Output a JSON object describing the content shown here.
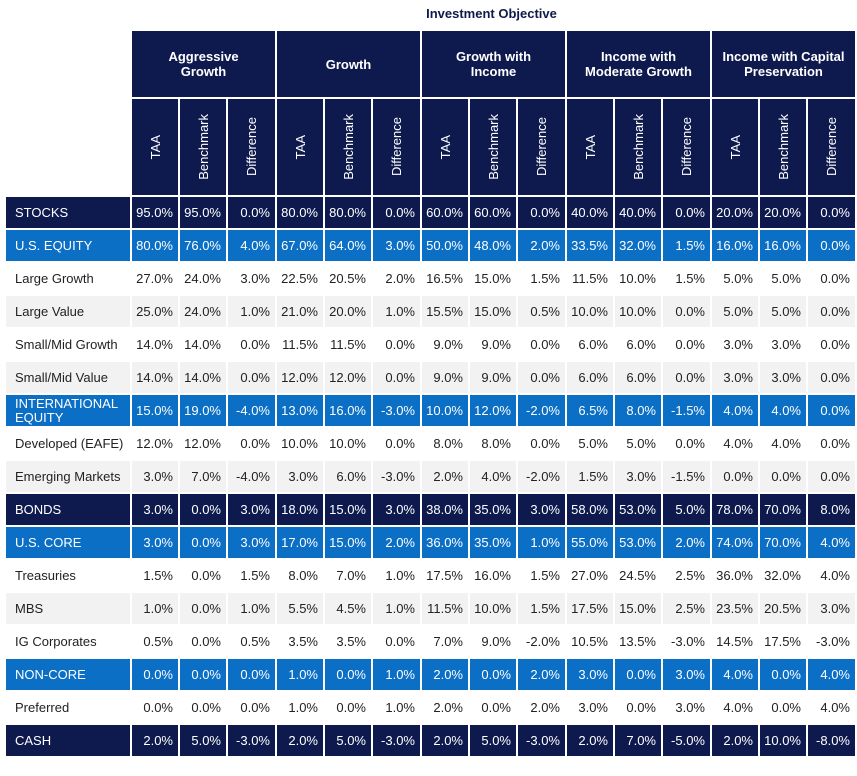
{
  "title": "Investment Objective",
  "objectives": [
    "Aggressive Growth",
    "Growth",
    "Growth with Income",
    "Income with Moderate Growth",
    "Income with Capital Preservation"
  ],
  "sub_headers": [
    "TAA",
    "Benchmark",
    "Difference"
  ],
  "colors": {
    "dark": "#0e1a4e",
    "mid": "#0b6fc6",
    "alt": "#f2f2f2"
  },
  "rows": [
    {
      "label": "STOCKS",
      "style": "dark",
      "values": [
        "95.0%",
        "95.0%",
        "0.0%",
        "80.0%",
        "80.0%",
        "0.0%",
        "60.0%",
        "60.0%",
        "0.0%",
        "40.0%",
        "40.0%",
        "0.0%",
        "20.0%",
        "20.0%",
        "0.0%"
      ]
    },
    {
      "label": "U.S. EQUITY",
      "style": "mid",
      "values": [
        "80.0%",
        "76.0%",
        "4.0%",
        "67.0%",
        "64.0%",
        "3.0%",
        "50.0%",
        "48.0%",
        "2.0%",
        "33.5%",
        "32.0%",
        "1.5%",
        "16.0%",
        "16.0%",
        "0.0%"
      ]
    },
    {
      "label": "Large Growth",
      "style": "odd",
      "values": [
        "27.0%",
        "24.0%",
        "3.0%",
        "22.5%",
        "20.5%",
        "2.0%",
        "16.5%",
        "15.0%",
        "1.5%",
        "11.5%",
        "10.0%",
        "1.5%",
        "5.0%",
        "5.0%",
        "0.0%"
      ]
    },
    {
      "label": "Large Value",
      "style": "even",
      "values": [
        "25.0%",
        "24.0%",
        "1.0%",
        "21.0%",
        "20.0%",
        "1.0%",
        "15.5%",
        "15.0%",
        "0.5%",
        "10.0%",
        "10.0%",
        "0.0%",
        "5.0%",
        "5.0%",
        "0.0%"
      ]
    },
    {
      "label": "Small/Mid Growth",
      "style": "odd",
      "values": [
        "14.0%",
        "14.0%",
        "0.0%",
        "11.5%",
        "11.5%",
        "0.0%",
        "9.0%",
        "9.0%",
        "0.0%",
        "6.0%",
        "6.0%",
        "0.0%",
        "3.0%",
        "3.0%",
        "0.0%"
      ]
    },
    {
      "label": "Small/Mid Value",
      "style": "even",
      "values": [
        "14.0%",
        "14.0%",
        "0.0%",
        "12.0%",
        "12.0%",
        "0.0%",
        "9.0%",
        "9.0%",
        "0.0%",
        "6.0%",
        "6.0%",
        "0.0%",
        "3.0%",
        "3.0%",
        "0.0%"
      ]
    },
    {
      "label": "INTERNATIONAL EQUITY",
      "style": "mid",
      "values": [
        "15.0%",
        "19.0%",
        "-4.0%",
        "13.0%",
        "16.0%",
        "-3.0%",
        "10.0%",
        "12.0%",
        "-2.0%",
        "6.5%",
        "8.0%",
        "-1.5%",
        "4.0%",
        "4.0%",
        "0.0%"
      ]
    },
    {
      "label": "Developed (EAFE)",
      "style": "odd",
      "values": [
        "12.0%",
        "12.0%",
        "0.0%",
        "10.0%",
        "10.0%",
        "0.0%",
        "8.0%",
        "8.0%",
        "0.0%",
        "5.0%",
        "5.0%",
        "0.0%",
        "4.0%",
        "4.0%",
        "0.0%"
      ]
    },
    {
      "label": "Emerging Markets",
      "style": "even",
      "values": [
        "3.0%",
        "7.0%",
        "-4.0%",
        "3.0%",
        "6.0%",
        "-3.0%",
        "2.0%",
        "4.0%",
        "-2.0%",
        "1.5%",
        "3.0%",
        "-1.5%",
        "0.0%",
        "0.0%",
        "0.0%"
      ]
    },
    {
      "label": "BONDS",
      "style": "dark",
      "values": [
        "3.0%",
        "0.0%",
        "3.0%",
        "18.0%",
        "15.0%",
        "3.0%",
        "38.0%",
        "35.0%",
        "3.0%",
        "58.0%",
        "53.0%",
        "5.0%",
        "78.0%",
        "70.0%",
        "8.0%"
      ]
    },
    {
      "label": "U.S. CORE",
      "style": "mid",
      "values": [
        "3.0%",
        "0.0%",
        "3.0%",
        "17.0%",
        "15.0%",
        "2.0%",
        "36.0%",
        "35.0%",
        "1.0%",
        "55.0%",
        "53.0%",
        "2.0%",
        "74.0%",
        "70.0%",
        "4.0%"
      ]
    },
    {
      "label": "Treasuries",
      "style": "odd",
      "values": [
        "1.5%",
        "0.0%",
        "1.5%",
        "8.0%",
        "7.0%",
        "1.0%",
        "17.5%",
        "16.0%",
        "1.5%",
        "27.0%",
        "24.5%",
        "2.5%",
        "36.0%",
        "32.0%",
        "4.0%"
      ]
    },
    {
      "label": "MBS",
      "style": "even",
      "values": [
        "1.0%",
        "0.0%",
        "1.0%",
        "5.5%",
        "4.5%",
        "1.0%",
        "11.5%",
        "10.0%",
        "1.5%",
        "17.5%",
        "15.0%",
        "2.5%",
        "23.5%",
        "20.5%",
        "3.0%"
      ]
    },
    {
      "label": "IG Corporates",
      "style": "odd",
      "values": [
        "0.5%",
        "0.0%",
        "0.5%",
        "3.5%",
        "3.5%",
        "0.0%",
        "7.0%",
        "9.0%",
        "-2.0%",
        "10.5%",
        "13.5%",
        "-3.0%",
        "14.5%",
        "17.5%",
        "-3.0%"
      ]
    },
    {
      "label": "NON-CORE",
      "style": "mid",
      "values": [
        "0.0%",
        "0.0%",
        "0.0%",
        "1.0%",
        "0.0%",
        "1.0%",
        "2.0%",
        "0.0%",
        "2.0%",
        "3.0%",
        "0.0%",
        "3.0%",
        "4.0%",
        "0.0%",
        "4.0%"
      ]
    },
    {
      "label": "Preferred",
      "style": "odd",
      "values": [
        "0.0%",
        "0.0%",
        "0.0%",
        "1.0%",
        "0.0%",
        "1.0%",
        "2.0%",
        "0.0%",
        "2.0%",
        "3.0%",
        "0.0%",
        "3.0%",
        "4.0%",
        "0.0%",
        "4.0%"
      ]
    },
    {
      "label": "CASH",
      "style": "dark",
      "values": [
        "2.0%",
        "5.0%",
        "-3.0%",
        "2.0%",
        "5.0%",
        "-3.0%",
        "2.0%",
        "5.0%",
        "-3.0%",
        "2.0%",
        "7.0%",
        "-5.0%",
        "2.0%",
        "10.0%",
        "-8.0%"
      ]
    }
  ]
}
